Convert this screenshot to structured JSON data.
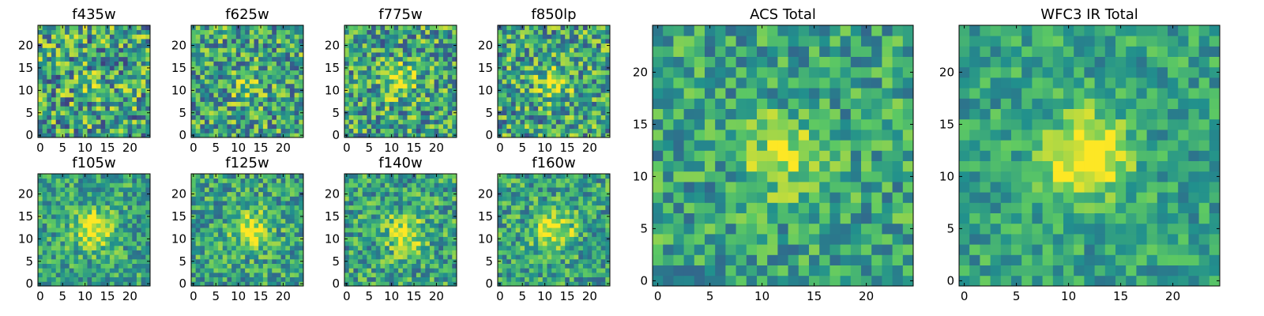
{
  "figure": {
    "description_free": true
  },
  "chart_data": [
    {
      "type": "heatmap",
      "title": "f435w",
      "noise": 0.55,
      "blob": [
        12,
        11,
        2.0,
        0.15
      ],
      "seed": 11,
      "xticks": [
        0,
        5,
        10,
        15,
        20
      ],
      "yticks": [
        0,
        5,
        10,
        15,
        20
      ],
      "xlim": [
        0,
        24
      ],
      "ylim": [
        0,
        24
      ]
    },
    {
      "type": "heatmap",
      "title": "f625w",
      "noise": 0.5,
      "blob": [
        12,
        11,
        2.2,
        0.25
      ],
      "seed": 23,
      "xticks": [
        0,
        5,
        10,
        15,
        20
      ],
      "yticks": [
        0,
        5,
        10,
        15,
        20
      ],
      "xlim": [
        0,
        24
      ],
      "ylim": [
        0,
        24
      ]
    },
    {
      "type": "heatmap",
      "title": "f775w",
      "noise": 0.5,
      "blob": [
        12,
        12,
        2.5,
        0.35
      ],
      "seed": 37,
      "xticks": [
        0,
        5,
        10,
        15,
        20
      ],
      "yticks": [
        0,
        5,
        10,
        15,
        20
      ],
      "xlim": [
        0,
        24
      ],
      "ylim": [
        0,
        24
      ]
    },
    {
      "type": "heatmap",
      "title": "f850lp",
      "noise": 0.5,
      "blob": [
        12,
        12,
        2.5,
        0.35
      ],
      "seed": 41,
      "xticks": [
        0,
        5,
        10,
        15,
        20
      ],
      "yticks": [
        0,
        5,
        10,
        15,
        20
      ],
      "xlim": [
        0,
        24
      ],
      "ylim": [
        0,
        24
      ]
    },
    {
      "type": "heatmap",
      "title": "f105w",
      "noise": 0.35,
      "blob": [
        12,
        12,
        3.0,
        0.45
      ],
      "seed": 53,
      "xticks": [
        0,
        5,
        10,
        15,
        20
      ],
      "yticks": [
        0,
        5,
        10,
        15,
        20
      ],
      "xlim": [
        0,
        24
      ],
      "ylim": [
        0,
        24
      ]
    },
    {
      "type": "heatmap",
      "title": "f125w",
      "noise": 0.38,
      "blob": [
        13,
        12,
        3.0,
        0.4
      ],
      "seed": 67,
      "xticks": [
        0,
        5,
        10,
        15,
        20
      ],
      "yticks": [
        0,
        5,
        10,
        15,
        20
      ],
      "xlim": [
        0,
        24
      ],
      "ylim": [
        0,
        24
      ]
    },
    {
      "type": "heatmap",
      "title": "f140w",
      "noise": 0.4,
      "blob": [
        13,
        11,
        3.0,
        0.4
      ],
      "seed": 71,
      "xticks": [
        0,
        5,
        10,
        15,
        20
      ],
      "yticks": [
        0,
        5,
        10,
        15,
        20
      ],
      "xlim": [
        0,
        24
      ],
      "ylim": [
        0,
        24
      ]
    },
    {
      "type": "heatmap",
      "title": "f160w",
      "noise": 0.38,
      "blob": [
        12,
        12,
        3.0,
        0.45
      ],
      "seed": 83,
      "xticks": [
        0,
        5,
        10,
        15,
        20
      ],
      "yticks": [
        0,
        5,
        10,
        15,
        20
      ],
      "xlim": [
        0,
        24
      ],
      "ylim": [
        0,
        24
      ]
    },
    {
      "type": "heatmap",
      "title": "ACS Total",
      "noise": 0.35,
      "blob": [
        12,
        12,
        2.5,
        0.35
      ],
      "seed": 97,
      "xticks": [
        0,
        5,
        10,
        15,
        20
      ],
      "yticks": [
        0,
        5,
        10,
        15,
        20
      ],
      "xlim": [
        0,
        24
      ],
      "ylim": [
        0,
        24
      ]
    },
    {
      "type": "heatmap",
      "title": "WFC3 IR Total",
      "noise": 0.28,
      "blob": [
        12,
        12,
        2.6,
        0.6
      ],
      "seed": 101,
      "xticks": [
        0,
        5,
        10,
        15,
        20
      ],
      "yticks": [
        0,
        5,
        10,
        15,
        20
      ],
      "xlim": [
        0,
        24
      ],
      "ylim": [
        0,
        24
      ]
    }
  ],
  "colors": {
    "colormap": [
      "#440154",
      "#3b528b",
      "#21908d",
      "#5dc963",
      "#fde725"
    ],
    "background": "#ffffff"
  }
}
